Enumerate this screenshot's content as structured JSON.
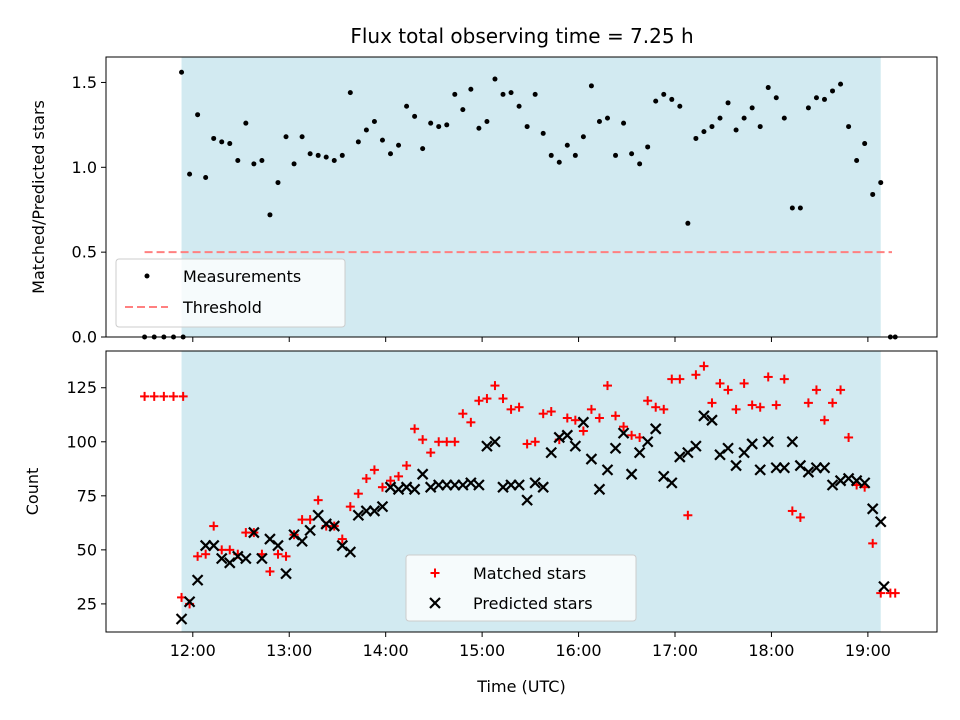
{
  "figure": {
    "title": "Flux total observing time = 7.25 h"
  },
  "chart_data": [
    {
      "type": "scatter",
      "title": "Flux total observing time = 7.25 h",
      "xlabel": "",
      "ylabel": "Matched/Predicted stars",
      "xlim": [
        "11:06",
        "19:43"
      ],
      "ylim": [
        0.0,
        1.65
      ],
      "yticks": [
        0.0,
        0.5,
        1.0,
        1.5
      ],
      "ytick_labels": [
        "0.0",
        "0.5",
        "1.0",
        "1.5"
      ],
      "grid": false,
      "shaded_region": {
        "x_start": "11:53",
        "x_end": "19:08",
        "color": "#add8e6"
      },
      "legend": {
        "placement": "lower-left",
        "entries": [
          "Measurements",
          "Threshold"
        ]
      },
      "series": [
        {
          "name": "Measurements",
          "kind": "points",
          "color": "#000000",
          "x": [
            "11:30",
            "11:36",
            "11:42",
            "11:48",
            "11:54",
            "11:53",
            "11:58",
            "12:03",
            "12:08",
            "12:13",
            "12:18",
            "12:23",
            "12:28",
            "12:33",
            "12:38",
            "12:43",
            "12:48",
            "12:53",
            "12:58",
            "13:03",
            "13:08",
            "13:13",
            "13:18",
            "13:23",
            "13:28",
            "13:33",
            "13:38",
            "13:43",
            "13:48",
            "13:53",
            "13:58",
            "14:03",
            "14:08",
            "14:13",
            "14:18",
            "14:23",
            "14:28",
            "14:33",
            "14:38",
            "14:43",
            "14:48",
            "14:53",
            "14:58",
            "15:03",
            "15:08",
            "15:13",
            "15:18",
            "15:23",
            "15:28",
            "15:33",
            "15:38",
            "15:43",
            "15:48",
            "15:53",
            "15:58",
            "16:03",
            "16:08",
            "16:13",
            "16:18",
            "16:23",
            "16:28",
            "16:33",
            "16:38",
            "16:43",
            "16:48",
            "16:53",
            "16:58",
            "17:03",
            "17:08",
            "17:13",
            "17:18",
            "17:23",
            "17:28",
            "17:33",
            "17:38",
            "17:43",
            "17:48",
            "17:53",
            "17:58",
            "18:03",
            "18:08",
            "18:13",
            "18:18",
            "18:23",
            "18:28",
            "18:33",
            "18:38",
            "18:43",
            "18:48",
            "18:53",
            "18:58",
            "19:03",
            "19:08",
            "19:14",
            "19:17"
          ],
          "y": [
            0,
            0,
            0,
            0,
            0,
            1.56,
            0.96,
            1.31,
            0.94,
            1.17,
            1.15,
            1.14,
            1.04,
            1.26,
            1.02,
            1.04,
            0.72,
            0.91,
            1.18,
            1.02,
            1.18,
            1.08,
            1.07,
            1.06,
            1.04,
            1.07,
            1.44,
            1.15,
            1.22,
            1.27,
            1.16,
            1.08,
            1.13,
            1.36,
            1.3,
            1.11,
            1.26,
            1.24,
            1.25,
            1.43,
            1.34,
            1.46,
            1.23,
            1.27,
            1.52,
            1.43,
            1.44,
            1.36,
            1.24,
            1.43,
            1.2,
            1.07,
            1.03,
            1.13,
            1.07,
            1.18,
            1.48,
            1.27,
            1.29,
            1.07,
            1.26,
            1.08,
            1.02,
            1.12,
            1.39,
            1.43,
            1.4,
            1.36,
            0.67,
            1.17,
            1.21,
            1.24,
            1.29,
            1.38,
            1.22,
            1.29,
            1.35,
            1.24,
            1.47,
            1.41,
            1.29,
            0.76,
            0.76,
            1.35,
            1.41,
            1.4,
            1.45,
            1.49,
            1.24,
            1.04,
            1.14,
            0.84,
            0.91,
            0,
            0
          ]
        },
        {
          "name": "Threshold",
          "kind": "dashed-line",
          "color": "#ff8080",
          "x": [
            "11:30",
            "19:15"
          ],
          "y": [
            0.5,
            0.5
          ]
        }
      ]
    },
    {
      "type": "scatter",
      "title": "",
      "xlabel": "Time (UTC)",
      "ylabel": "Count",
      "xlim": [
        "11:06",
        "19:43"
      ],
      "ylim": [
        12,
        142
      ],
      "xticks": [
        "12:00",
        "13:00",
        "14:00",
        "15:00",
        "16:00",
        "17:00",
        "18:00",
        "19:00"
      ],
      "yticks": [
        25,
        50,
        75,
        100,
        125
      ],
      "ytick_labels": [
        "25",
        "50",
        "75",
        "100",
        "125"
      ],
      "grid": false,
      "shaded_region": {
        "x_start": "11:53",
        "x_end": "19:08",
        "color": "#add8e6"
      },
      "legend": {
        "placement": "lower-center",
        "entries": [
          "Matched stars",
          "Predicted stars"
        ]
      },
      "series": [
        {
          "name": "Matched stars",
          "marker": "plus",
          "color": "#ff0000",
          "x": [
            "11:30",
            "11:36",
            "11:42",
            "11:48",
            "11:54",
            "11:53",
            "11:58",
            "12:03",
            "12:08",
            "12:13",
            "12:18",
            "12:23",
            "12:28",
            "12:33",
            "12:38",
            "12:43",
            "12:48",
            "12:53",
            "12:58",
            "13:03",
            "13:08",
            "13:13",
            "13:18",
            "13:23",
            "13:28",
            "13:33",
            "13:38",
            "13:43",
            "13:48",
            "13:53",
            "13:58",
            "14:03",
            "14:08",
            "14:13",
            "14:18",
            "14:23",
            "14:28",
            "14:33",
            "14:38",
            "14:43",
            "14:48",
            "14:53",
            "14:58",
            "15:03",
            "15:08",
            "15:13",
            "15:18",
            "15:23",
            "15:28",
            "15:33",
            "15:38",
            "15:43",
            "15:48",
            "15:53",
            "15:58",
            "16:03",
            "16:08",
            "16:13",
            "16:18",
            "16:23",
            "16:28",
            "16:33",
            "16:38",
            "16:43",
            "16:48",
            "16:53",
            "16:58",
            "17:03",
            "17:08",
            "17:13",
            "17:18",
            "17:23",
            "17:28",
            "17:33",
            "17:38",
            "17:43",
            "17:48",
            "17:53",
            "17:58",
            "18:03",
            "18:08",
            "18:13",
            "18:18",
            "18:23",
            "18:28",
            "18:33",
            "18:38",
            "18:43",
            "18:48",
            "18:53",
            "18:58",
            "19:03",
            "19:08",
            "19:14",
            "19:17"
          ],
          "y": [
            121,
            121,
            121,
            121,
            121,
            28,
            25,
            47,
            48,
            61,
            50,
            50,
            48,
            58,
            58,
            48,
            40,
            48,
            47,
            57,
            64,
            64,
            73,
            61,
            61,
            55,
            70,
            76,
            83,
            87,
            79,
            82,
            84,
            89,
            106,
            101,
            95,
            100,
            100,
            100,
            113,
            109,
            119,
            120,
            126,
            120,
            115,
            116,
            99,
            100,
            113,
            114,
            101,
            111,
            110,
            105,
            115,
            111,
            126,
            112,
            107,
            103,
            102,
            119,
            116,
            115,
            129,
            129,
            66,
            131,
            135,
            118,
            127,
            124,
            115,
            127,
            117,
            116,
            130,
            117,
            129,
            68,
            65,
            118,
            124,
            110,
            118,
            124,
            102,
            80,
            79,
            53,
            30,
            30,
            30
          ]
        },
        {
          "name": "Predicted stars",
          "marker": "x",
          "color": "#000000",
          "x": [
            "11:53",
            "11:58",
            "12:03",
            "12:08",
            "12:13",
            "12:18",
            "12:23",
            "12:28",
            "12:33",
            "12:38",
            "12:43",
            "12:48",
            "12:53",
            "12:58",
            "13:03",
            "13:08",
            "13:13",
            "13:18",
            "13:23",
            "13:28",
            "13:33",
            "13:38",
            "13:43",
            "13:48",
            "13:53",
            "13:58",
            "14:03",
            "14:08",
            "14:13",
            "14:18",
            "14:23",
            "14:28",
            "14:33",
            "14:38",
            "14:43",
            "14:48",
            "14:53",
            "14:58",
            "15:03",
            "15:08",
            "15:13",
            "15:18",
            "15:23",
            "15:28",
            "15:33",
            "15:38",
            "15:43",
            "15:48",
            "15:53",
            "15:58",
            "16:03",
            "16:08",
            "16:13",
            "16:18",
            "16:23",
            "16:28",
            "16:33",
            "16:38",
            "16:43",
            "16:48",
            "16:53",
            "16:58",
            "17:03",
            "17:08",
            "17:13",
            "17:18",
            "17:23",
            "17:28",
            "17:33",
            "17:38",
            "17:43",
            "17:48",
            "17:53",
            "17:58",
            "18:03",
            "18:08",
            "18:13",
            "18:18",
            "18:23",
            "18:28",
            "18:33",
            "18:38",
            "18:43",
            "18:48",
            "18:53",
            "18:58",
            "19:03",
            "19:08"
          ],
          "y": [
            18,
            26,
            36,
            52,
            52,
            46,
            44,
            47,
            46,
            58,
            46,
            55,
            52,
            39,
            57,
            54,
            59,
            66,
            62,
            61,
            52,
            49,
            66,
            68,
            68,
            70,
            79,
            78,
            79,
            78,
            85,
            79,
            80,
            80,
            80,
            80,
            81,
            80,
            98,
            100,
            79,
            80,
            80,
            73,
            81,
            79,
            95,
            102,
            103,
            98,
            109,
            92,
            78,
            87,
            97,
            104,
            85,
            95,
            100,
            106,
            84,
            81,
            93,
            95,
            98,
            112,
            110,
            94,
            97,
            89,
            95,
            99,
            87,
            100,
            88,
            88,
            100,
            89,
            86,
            88,
            88,
            80,
            82,
            83,
            82,
            81,
            69,
            63
          ]
        },
        {
          "name": "Predicted stars",
          "marker": "x",
          "color": "#000000",
          "x": [
            "19:10"
          ],
          "y": [
            33
          ]
        }
      ]
    }
  ]
}
